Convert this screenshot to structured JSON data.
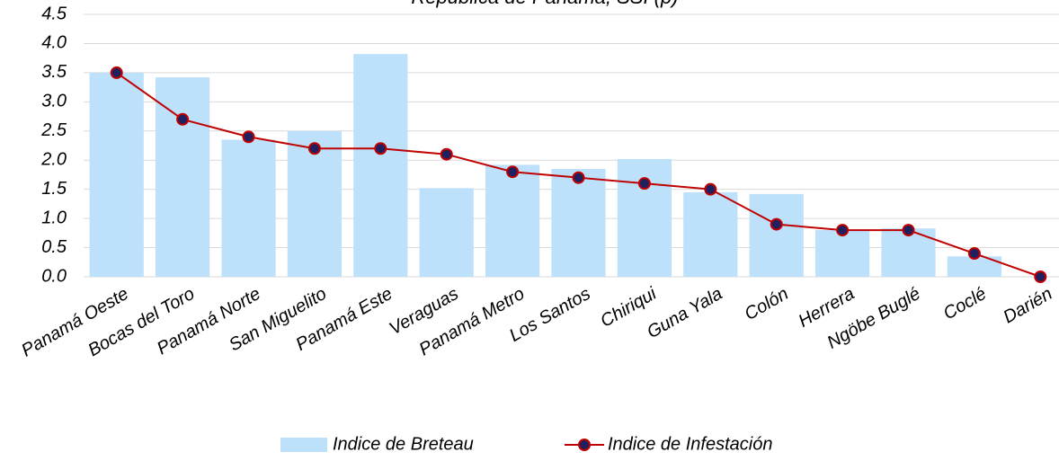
{
  "chart_data": {
    "type": "bar-line",
    "title": "República de Panamá, SSI (p)",
    "categories": [
      "Panamá Oeste",
      "Bocas del Toro",
      "Panamá Norte",
      "San Miguelito",
      "Panamá Este",
      "Veraguas",
      "Panamá Metro",
      "Los Santos",
      "Chiriqui",
      "Guna Yala",
      "Colón",
      "Herrera",
      "Ngöbe Buglé",
      "Coclé",
      "Darién"
    ],
    "series": [
      {
        "name": "Indice de Breteau",
        "type": "bar",
        "color": "#bde0fb",
        "values": [
          3.5,
          3.42,
          2.35,
          2.5,
          3.82,
          1.52,
          1.92,
          1.85,
          2.02,
          1.45,
          1.42,
          0.8,
          0.83,
          0.35,
          0
        ]
      },
      {
        "name": "Indice de Infestación",
        "type": "line",
        "color": "#c00000",
        "marker_color": "#1f2060",
        "values": [
          3.5,
          2.7,
          2.4,
          2.2,
          2.2,
          2.1,
          1.8,
          1.7,
          1.6,
          1.5,
          0.9,
          0.8,
          0.8,
          0.4,
          0.0
        ]
      }
    ],
    "ylim": [
      0,
      4.5
    ],
    "yticks": [
      {
        "value": 0,
        "label": "0.0"
      },
      0.5,
      {
        "value": 1,
        "label": "1.0"
      },
      1.5,
      {
        "value": 2,
        "label": "2.0"
      },
      2.5,
      {
        "value": 3,
        "label": "3.0"
      },
      3.5,
      {
        "value": 4,
        "label": "4.0"
      },
      4.5
    ],
    "grid": true,
    "legend": "bottom"
  }
}
